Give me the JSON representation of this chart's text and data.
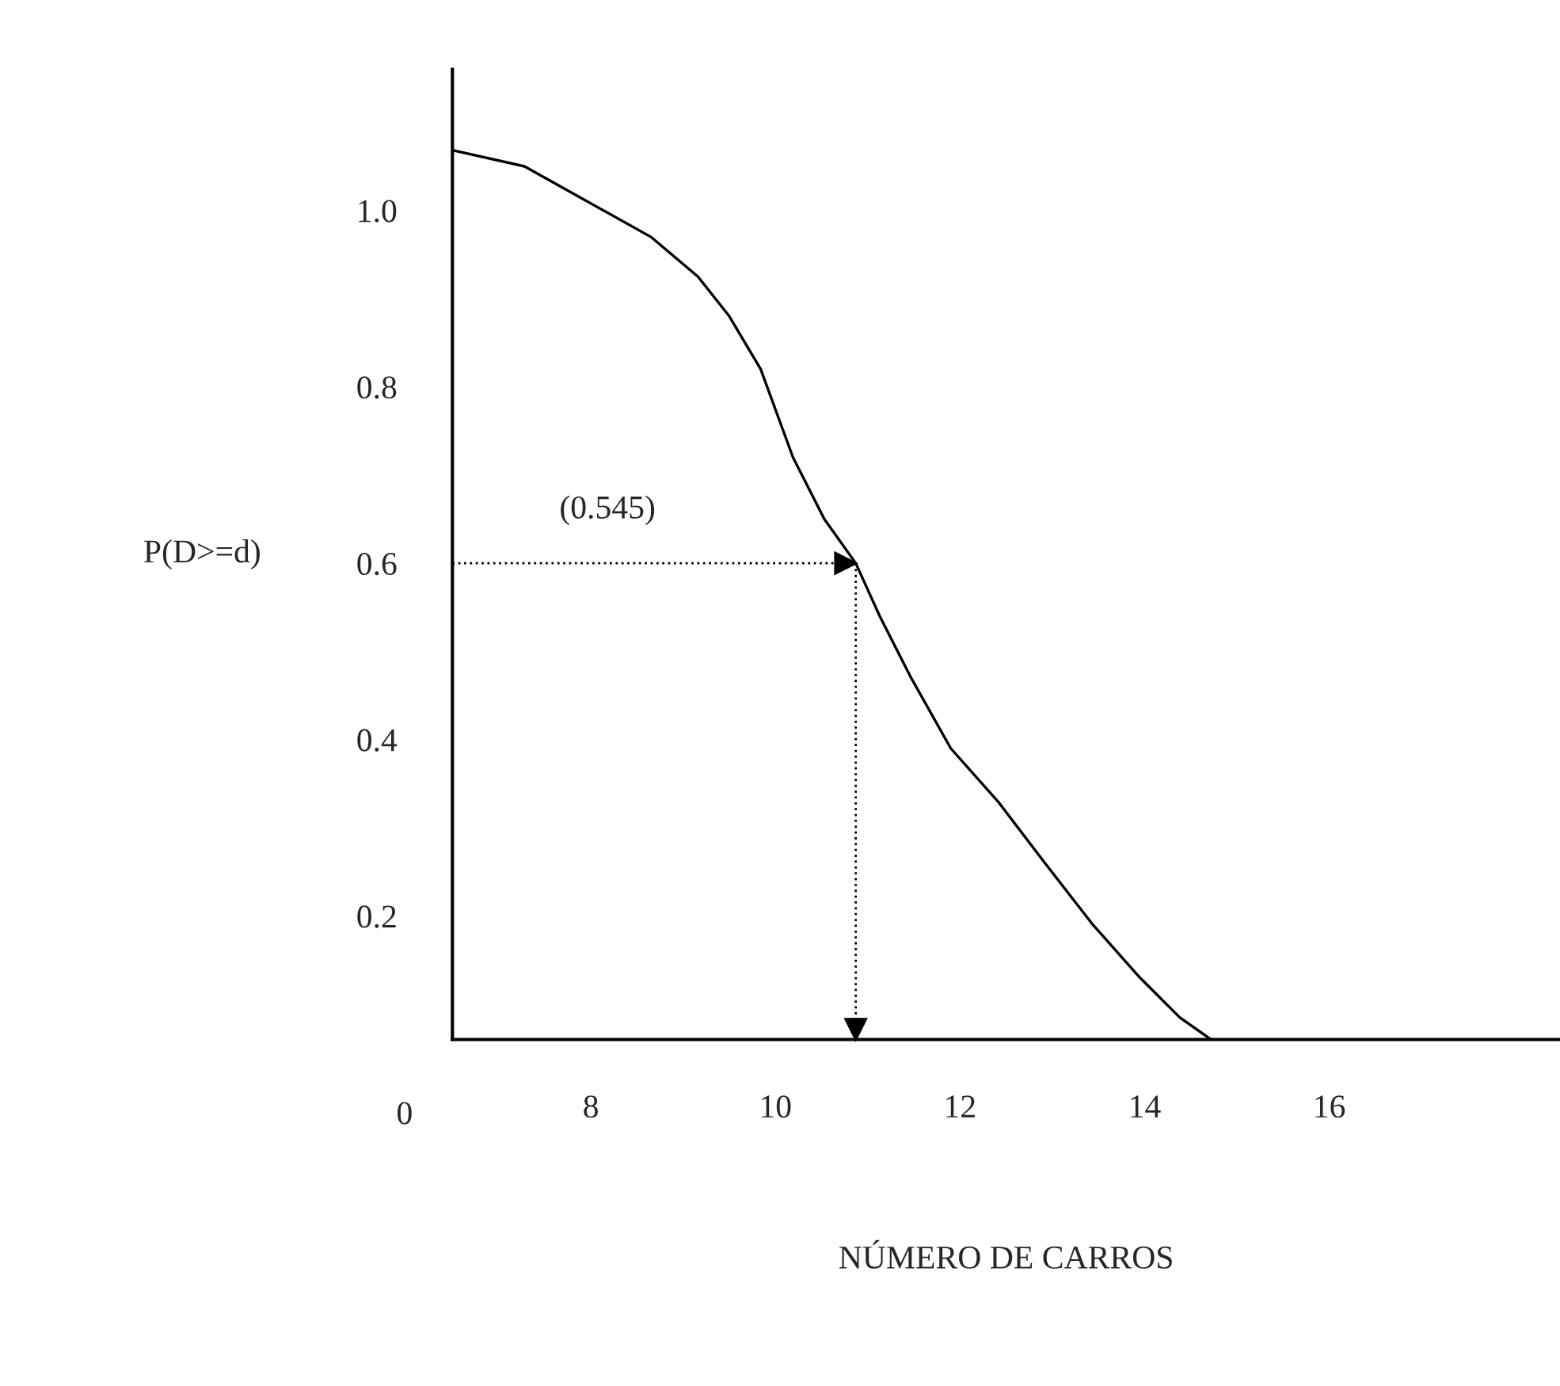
{
  "chart_data": {
    "type": "line",
    "xlabel": "NÚMERO DE CARROS",
    "ylabel": "P(D>=d)",
    "x": [
      6.51,
      7.28,
      8.05,
      8.65,
      9.16,
      9.5,
      9.84,
      10.19,
      10.53,
      10.87,
      11.13,
      11.47,
      11.9,
      12.41,
      12.92,
      13.44,
      13.95,
      14.38,
      14.72
    ],
    "series": [
      {
        "color": "#000000",
        "values": [
          1.068,
          1.05,
          1.005,
          0.97,
          0.925,
          0.88,
          0.82,
          0.72,
          0.65,
          0.6,
          0.54,
          0.47,
          0.39,
          0.33,
          0.26,
          0.19,
          0.13,
          0.085,
          0.06
        ]
      }
    ],
    "xlim": [
      6.5,
      18.5
    ],
    "ylim": [
      0.06,
      1.16
    ],
    "xticks": [
      8,
      10,
      12,
      14,
      16
    ],
    "yticks": [
      0.2,
      0.4,
      0.6,
      0.8,
      {
        "value": 1.0,
        "label": "1.0"
      }
    ],
    "annotations": [
      "(0.545)",
      "0"
    ],
    "ref_lines": [
      {
        "axis": "y",
        "value": 0.6,
        "line_style": "dotted"
      },
      {
        "axis": "x",
        "value": 10.87,
        "line_style": "dotted"
      }
    ],
    "grid": false,
    "legend": false,
    "marker": "none",
    "line_style": "solid"
  }
}
